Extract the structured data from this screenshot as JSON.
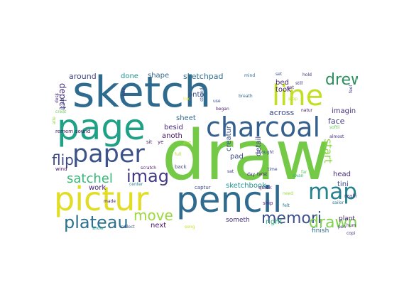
{
  "wordcloud": {
    "words": [
      {
        "text": "sketch",
        "color": "#2f6b8e"
      },
      {
        "text": "draw",
        "color": "#74c947"
      },
      {
        "text": "page",
        "color": "#1fa187"
      },
      {
        "text": "pencil",
        "color": "#2f6b8e"
      },
      {
        "text": "pictur",
        "color": "#e1dd26"
      },
      {
        "text": "line",
        "color": "#c2df23"
      },
      {
        "text": "charcoal",
        "color": "#35608d"
      },
      {
        "text": "paper",
        "color": "#3b528b"
      },
      {
        "text": "map",
        "color": "#26828e"
      },
      {
        "text": "drew",
        "color": "#2d8f5e"
      },
      {
        "text": "imag",
        "color": "#443a83"
      },
      {
        "text": "plateau",
        "color": "#2c728e"
      },
      {
        "text": "memori",
        "color": "#3c4f8a"
      },
      {
        "text": "drawn",
        "color": "#7fd34e"
      },
      {
        "text": "move",
        "color": "#9bd93c"
      },
      {
        "text": "flip",
        "color": "#3e4989"
      },
      {
        "text": "satchel",
        "color": "#37b878"
      },
      {
        "text": "start",
        "color": "#8cd645"
      },
      {
        "text": "sketchpad",
        "color": "#2e6e8e"
      },
      {
        "text": "shape",
        "color": "#31688e"
      },
      {
        "text": "done",
        "color": "#21918c"
      },
      {
        "text": "around",
        "color": "#404688"
      },
      {
        "text": "depict",
        "color": "#46327e"
      },
      {
        "text": "onto",
        "color": "#3b528b"
      },
      {
        "text": "bed",
        "color": "#481f70"
      },
      {
        "text": "took",
        "color": "#482475"
      },
      {
        "text": "across",
        "color": "#3e4a89"
      },
      {
        "text": "face",
        "color": "#433e85"
      },
      {
        "text": "imagin",
        "color": "#46307e"
      },
      {
        "text": "sheet",
        "color": "#31688e"
      },
      {
        "text": "besid",
        "color": "#472d7b"
      },
      {
        "text": "anoth",
        "color": "#48186a"
      },
      {
        "text": "creatur",
        "color": "#3a548c"
      },
      {
        "text": "pad",
        "color": "#3f4788"
      },
      {
        "text": "detail",
        "color": "#414487"
      },
      {
        "text": "work",
        "color": "#482475"
      },
      {
        "text": "sketchbook",
        "color": "#21918c"
      },
      {
        "text": "head",
        "color": "#472c7a"
      },
      {
        "text": "tini",
        "color": "#3e4a89"
      },
      {
        "text": "next",
        "color": "#481467"
      },
      {
        "text": "right",
        "color": "#35b779"
      },
      {
        "text": "finish",
        "color": "#31688e"
      },
      {
        "text": "someth",
        "color": "#472f7d"
      },
      {
        "text": "plant",
        "color": "#482374"
      },
      {
        "text": "captur",
        "color": "#3e4989"
      },
      {
        "text": "quick",
        "color": "#482878"
      },
      {
        "text": "ship",
        "color": "#482475"
      },
      {
        "text": "realli",
        "color": "#443983"
      },
      {
        "text": "hum",
        "color": "#481a6c"
      },
      {
        "text": "copi",
        "color": "#46337e"
      },
      {
        "text": "pen",
        "color": "#453882"
      },
      {
        "text": "remem",
        "color": "#471365"
      },
      {
        "text": "sound",
        "color": "#46085c"
      },
      {
        "text": "wind",
        "color": "#471063"
      },
      {
        "text": "desk",
        "color": "#472a7a"
      },
      {
        "text": "scout",
        "color": "#3d4e8a"
      },
      {
        "text": "use",
        "color": "#3b528b"
      },
      {
        "text": "began",
        "color": "#481c6e"
      },
      {
        "text": "breath",
        "color": "#31688e"
      },
      {
        "text": "natur",
        "color": "#481668"
      },
      {
        "text": "almost",
        "color": "#472e7c"
      },
      {
        "text": "thought",
        "color": "#3e4989"
      },
      {
        "text": "sit",
        "color": "#482677"
      },
      {
        "text": "ye",
        "color": "#48186a"
      },
      {
        "text": "back",
        "color": "#404588"
      },
      {
        "text": "center",
        "color": "#26828e"
      },
      {
        "text": "collect",
        "color": "#3b528b"
      },
      {
        "text": "show",
        "color": "#1f9a8a"
      },
      {
        "text": "made",
        "color": "#482576"
      },
      {
        "text": "hair",
        "color": "#46327e"
      },
      {
        "text": "mind",
        "color": "#31688e"
      },
      {
        "text": "set",
        "color": "#3b528b"
      },
      {
        "text": "hold",
        "color": "#472d7b"
      },
      {
        "text": "got",
        "color": "#481b6d"
      },
      {
        "text": "still",
        "color": "#46337e"
      },
      {
        "text": "stop",
        "color": "#b5de2b"
      },
      {
        "text": "softli",
        "color": "#6ccd5a"
      },
      {
        "text": "twist",
        "color": "#48186a"
      },
      {
        "text": "time",
        "color": "#3e4989"
      },
      {
        "text": "day",
        "color": "#482374"
      },
      {
        "text": "sat",
        "color": "#433e85"
      },
      {
        "text": "need",
        "color": "#a0da39"
      },
      {
        "text": "felt",
        "color": "#2a788e"
      },
      {
        "text": "sailor",
        "color": "#2c728e"
      },
      {
        "text": "strand",
        "color": "#3b528b"
      },
      {
        "text": "scratch",
        "color": "#481769"
      },
      {
        "text": "full",
        "color": "#b5de2b"
      },
      {
        "text": "creat",
        "color": "#6ccd5a"
      },
      {
        "text": "alle",
        "color": "#8fd744"
      },
      {
        "text": "far",
        "color": "#5ec962"
      },
      {
        "text": "swan",
        "color": "#2fb47c"
      },
      {
        "text": "song",
        "color": "#c8e020"
      },
      {
        "text": "exit",
        "color": "#b5de2b"
      },
      {
        "text": "ink",
        "color": "#fde725"
      },
      {
        "text": "feel",
        "color": "#433e85"
      }
    ]
  }
}
